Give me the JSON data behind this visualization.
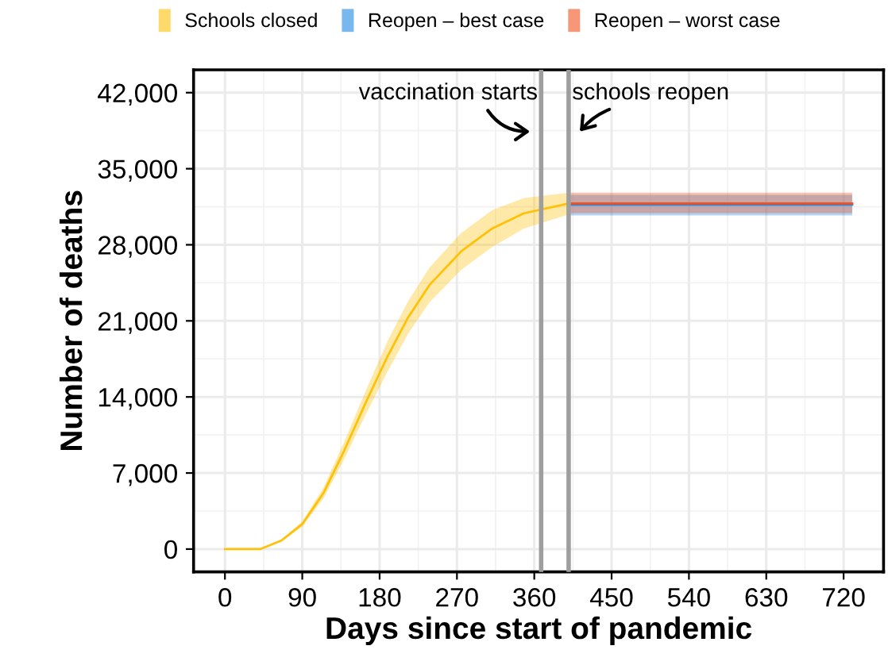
{
  "chart_data": {
    "type": "line",
    "xlabel": "Days since start of pandemic",
    "ylabel": "Number of deaths",
    "xlim": [
      -36.5,
      766.5
    ],
    "ylim": [
      -2100,
      44100
    ],
    "xticks": [
      0,
      90,
      180,
      270,
      360,
      450,
      540,
      630,
      720
    ],
    "yticks": [
      0,
      {
        "value": 7000,
        "label": "7,000"
      },
      {
        "value": 14000,
        "label": "14,000"
      },
      {
        "value": 21000,
        "label": "21,000"
      },
      {
        "value": 28000,
        "label": "28,000"
      },
      {
        "value": 35000,
        "label": "35,000"
      },
      {
        "value": 42000,
        "label": "42,000"
      }
    ],
    "grid": true,
    "legend": "top",
    "marker": "none",
    "line_style": "solid",
    "series": [
      {
        "name": "Schools closed",
        "color": "#ffc107",
        "x": [
          0,
          41,
          66,
          90,
          115,
          139,
          164,
          189,
          213,
          238,
          275,
          311,
          348,
          400
        ],
        "values": [
          0,
          0,
          800,
          2300,
          5200,
          9100,
          13500,
          17700,
          21300,
          24300,
          27400,
          29500,
          30900,
          31800
        ],
        "lower": [
          0,
          0,
          750,
          2050,
          4700,
          8300,
          12400,
          16300,
          19800,
          22700,
          25700,
          27800,
          29500,
          30800
        ],
        "upper": [
          0,
          0,
          910,
          2550,
          5700,
          9900,
          14600,
          19100,
          22800,
          25900,
          29100,
          31200,
          32300,
          32800
        ]
      },
      {
        "name": "Reopen – best case",
        "color": "#1e88e5",
        "x": [
          400,
          730
        ],
        "values": [
          31700,
          31700
        ],
        "lower": [
          30700,
          30700
        ],
        "upper": [
          32600,
          32600
        ]
      },
      {
        "name": "Reopen – worst case",
        "color": "#f4511e",
        "x": [
          400,
          730
        ],
        "values": [
          31800,
          31800
        ],
        "lower": [
          30900,
          30900
        ],
        "upper": [
          32800,
          32800
        ]
      }
    ],
    "ref_lines": [
      {
        "axis": "x",
        "value": 368,
        "label": "vaccination starts",
        "color": "#9e9e9e"
      },
      {
        "axis": "x",
        "value": 400,
        "label": "schools reopen",
        "color": "#9e9e9e"
      }
    ]
  }
}
